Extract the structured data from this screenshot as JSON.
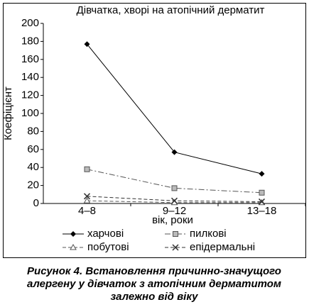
{
  "chart_data": {
    "type": "line",
    "title": "Дівчатка, хворі на атопічний дерматит",
    "x_label": "вік, роки",
    "y_label": "Коефіцієнт",
    "categories": [
      "4–8",
      "9–12",
      "13–18"
    ],
    "series": [
      {
        "name": "харчові",
        "color": "#000000",
        "marker": "diamond",
        "dash": "solid",
        "values": [
          177,
          57,
          33
        ]
      },
      {
        "name": "пилкові",
        "color": "#555555",
        "marker": "square",
        "dash": "dashdot",
        "values": [
          38,
          17,
          12
        ]
      },
      {
        "name": "побутові",
        "color": "#555555",
        "marker": "triangle",
        "dash": "dashed",
        "values": [
          3,
          1,
          1
        ]
      },
      {
        "name": "епідермальні",
        "color": "#333333",
        "marker": "x",
        "dash": "dashed",
        "values": [
          8,
          3,
          2
        ]
      }
    ],
    "ylim": [
      0,
      200
    ],
    "yticks": [
      0,
      20,
      40,
      60,
      80,
      100,
      120,
      140,
      160,
      180,
      200
    ],
    "grid": false
  },
  "caption": [
    "Рисунок 4. Встановлення причинно-значущого",
    "алергену у дівчаток з атопічним дерматитом",
    "залежно від віку"
  ]
}
